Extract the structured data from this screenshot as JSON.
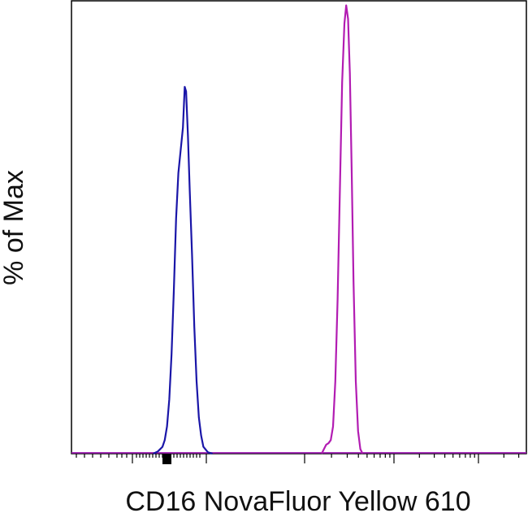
{
  "chart_data": {
    "type": "line",
    "title": "",
    "xlabel": "CD16 NovaFluor Yellow 610",
    "ylabel": "% of Max",
    "x_scale": "log",
    "x_ticks": [],
    "y_ticks": [],
    "grid": false,
    "legend": "none",
    "series": [
      {
        "color": "#1a16a8",
        "points": [
          [
            0.18,
            0
          ],
          [
            0.19,
            0.5
          ],
          [
            0.2,
            1.5
          ],
          [
            0.205,
            3
          ],
          [
            0.21,
            6
          ],
          [
            0.215,
            12
          ],
          [
            0.22,
            22
          ],
          [
            0.225,
            36
          ],
          [
            0.23,
            52
          ],
          [
            0.235,
            62
          ],
          [
            0.24,
            67
          ],
          [
            0.245,
            72
          ],
          [
            0.249,
            81
          ],
          [
            0.252,
            80
          ],
          [
            0.256,
            70
          ],
          [
            0.26,
            58
          ],
          [
            0.265,
            44
          ],
          [
            0.27,
            28
          ],
          [
            0.275,
            16
          ],
          [
            0.28,
            8
          ],
          [
            0.285,
            4
          ],
          [
            0.29,
            1.5
          ],
          [
            0.3,
            0.3
          ],
          [
            0.31,
            0
          ]
        ]
      },
      {
        "color": "#b21cb2",
        "points": [
          [
            0.55,
            0
          ],
          [
            0.555,
            1
          ],
          [
            0.56,
            2
          ],
          [
            0.565,
            2.3
          ],
          [
            0.57,
            3
          ],
          [
            0.575,
            6
          ],
          [
            0.58,
            16
          ],
          [
            0.585,
            34
          ],
          [
            0.59,
            58
          ],
          [
            0.595,
            82
          ],
          [
            0.6,
            95
          ],
          [
            0.604,
            99
          ],
          [
            0.608,
            96
          ],
          [
            0.612,
            84
          ],
          [
            0.616,
            62
          ],
          [
            0.62,
            38
          ],
          [
            0.625,
            16
          ],
          [
            0.63,
            5
          ],
          [
            0.635,
            1
          ],
          [
            0.64,
            0
          ]
        ]
      }
    ]
  }
}
